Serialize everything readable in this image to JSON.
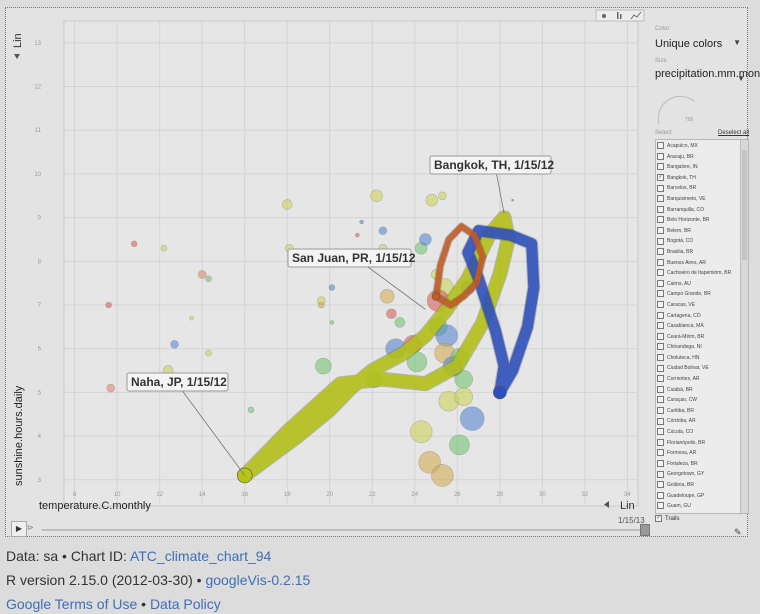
{
  "chart_data": {
    "type": "scatter",
    "title": "",
    "xlabel": "temperature.C.monthly",
    "ylabel": "sunshine.hours.daily",
    "x_ticks": [
      "8",
      "10",
      "12",
      "14",
      "16",
      "18",
      "20",
      "22",
      "24",
      "26",
      "28",
      "30",
      "32",
      "34"
    ],
    "y_ticks": [
      "3",
      "4",
      "5",
      "6",
      "7",
      "8",
      "9",
      "10",
      "11",
      "12",
      "13"
    ],
    "xlim": [
      7.5,
      34.5
    ],
    "ylim": [
      2.4,
      13.5
    ],
    "x_scale_label": "Lin",
    "y_scale_label": "Lin",
    "time_label": "1/15/13",
    "labels": [
      {
        "text": "Bangkok, TH, 1/15/12",
        "x": 28.2,
        "y": 9.1
      },
      {
        "text": "San Juan, PR, 1/15/12",
        "x": 24.5,
        "y": 6.9
      },
      {
        "text": "Naha, JP, 1/15/12",
        "x": 16.0,
        "y": 3.1
      }
    ],
    "trails": [
      {
        "name": "Bangkok, TH",
        "color": "#2c4fc0",
        "width": 11,
        "points": [
          [
            28.0,
            5.0
          ],
          [
            28.2,
            5.6
          ],
          [
            27.8,
            6.4
          ],
          [
            27.0,
            7.6
          ],
          [
            26.5,
            8.2
          ],
          [
            27.0,
            8.7
          ],
          [
            28.5,
            8.6
          ],
          [
            29.5,
            8.4
          ],
          [
            29.6,
            7.4
          ],
          [
            29.3,
            6.5
          ],
          [
            28.6,
            5.5
          ],
          [
            28.0,
            5.0
          ]
        ]
      },
      {
        "name": "Naha, JP",
        "color": "#b7c414",
        "width": 13,
        "points": [
          [
            16.0,
            3.1
          ],
          [
            18.0,
            4.1
          ],
          [
            20.5,
            5.2
          ],
          [
            22.5,
            5.3
          ],
          [
            24.5,
            5.2
          ],
          [
            26.0,
            5.6
          ],
          [
            27.2,
            6.6
          ],
          [
            28.0,
            7.7
          ],
          [
            28.4,
            8.5
          ],
          [
            28.2,
            9.0
          ],
          [
            27.5,
            8.6
          ],
          [
            26.5,
            7.6
          ],
          [
            25.5,
            6.9
          ],
          [
            24.5,
            6.3
          ],
          [
            23.5,
            5.9
          ],
          [
            22.0,
            5.5
          ],
          [
            21.0,
            5.1
          ],
          [
            20.0,
            4.6
          ],
          [
            18.5,
            4.0
          ],
          [
            16.0,
            3.1
          ]
        ]
      },
      {
        "name": "San Juan, PR",
        "color": "#c55a22",
        "width": 6,
        "points": [
          [
            25.0,
            7.2
          ],
          [
            25.2,
            7.9
          ],
          [
            25.6,
            8.5
          ],
          [
            26.2,
            8.8
          ],
          [
            26.8,
            8.6
          ],
          [
            27.2,
            8.1
          ],
          [
            26.9,
            7.5
          ],
          [
            26.3,
            7.2
          ],
          [
            25.7,
            7.0
          ],
          [
            25.0,
            7.2
          ]
        ]
      }
    ],
    "points": [
      {
        "x": 10.8,
        "y": 8.4,
        "r": 3,
        "color": "#d9534f"
      },
      {
        "x": 12.2,
        "y": 8.3,
        "r": 3,
        "color": "#c8d24a"
      },
      {
        "x": 9.6,
        "y": 7.0,
        "r": 3,
        "color": "#d9534f"
      },
      {
        "x": 9.7,
        "y": 5.1,
        "r": 4,
        "color": "#e08060"
      },
      {
        "x": 12.7,
        "y": 6.1,
        "r": 4,
        "color": "#4a7fd0"
      },
      {
        "x": 12.4,
        "y": 5.5,
        "r": 5,
        "color": "#c8d24a"
      },
      {
        "x": 13.5,
        "y": 6.7,
        "r": 2,
        "color": "#c8d24a"
      },
      {
        "x": 14.0,
        "y": 7.7,
        "r": 4,
        "color": "#e08060"
      },
      {
        "x": 14.3,
        "y": 7.6,
        "r": 3,
        "color": "#6abf69"
      },
      {
        "x": 14.3,
        "y": 5.9,
        "r": 3,
        "color": "#c8d24a"
      },
      {
        "x": 16.3,
        "y": 4.6,
        "r": 3,
        "color": "#6abf69"
      },
      {
        "x": 18.0,
        "y": 9.3,
        "r": 5,
        "color": "#c8d24a"
      },
      {
        "x": 18.1,
        "y": 8.3,
        "r": 4,
        "color": "#c8d24a"
      },
      {
        "x": 19.6,
        "y": 7.1,
        "r": 4,
        "color": "#c8d24a"
      },
      {
        "x": 19.6,
        "y": 7.0,
        "r": 3,
        "color": "#d4a84a"
      },
      {
        "x": 20.1,
        "y": 7.4,
        "r": 3,
        "color": "#4a7fd0"
      },
      {
        "x": 20.1,
        "y": 6.6,
        "r": 2,
        "color": "#6abf69"
      },
      {
        "x": 19.7,
        "y": 5.6,
        "r": 8,
        "color": "#6abf69"
      },
      {
        "x": 21.1,
        "y": 8.2,
        "r": 4,
        "color": "#6abf69"
      },
      {
        "x": 21.3,
        "y": 8.6,
        "r": 2,
        "color": "#d9534f"
      },
      {
        "x": 21.5,
        "y": 8.9,
        "r": 2,
        "color": "#4a7fd0"
      },
      {
        "x": 22.2,
        "y": 9.5,
        "r": 6,
        "color": "#c8d24a"
      },
      {
        "x": 22.5,
        "y": 8.7,
        "r": 4,
        "color": "#4a7fd0"
      },
      {
        "x": 22.5,
        "y": 8.3,
        "r": 4,
        "color": "#c8d24a"
      },
      {
        "x": 22.7,
        "y": 7.2,
        "r": 7,
        "color": "#d4a84a"
      },
      {
        "x": 22.9,
        "y": 6.8,
        "r": 5,
        "color": "#d9534f"
      },
      {
        "x": 22.1,
        "y": 5.3,
        "r": 8,
        "color": "#6abf69"
      },
      {
        "x": 23.3,
        "y": 6.6,
        "r": 5,
        "color": "#6abf69"
      },
      {
        "x": 23.1,
        "y": 6.0,
        "r": 10,
        "color": "#4a7fd0"
      },
      {
        "x": 23.9,
        "y": 6.1,
        "r": 9,
        "color": "#d9534f"
      },
      {
        "x": 24.1,
        "y": 5.7,
        "r": 10,
        "color": "#6abf69"
      },
      {
        "x": 24.3,
        "y": 8.3,
        "r": 6,
        "color": "#6abf69"
      },
      {
        "x": 24.5,
        "y": 8.5,
        "r": 6,
        "color": "#4a7fd0"
      },
      {
        "x": 24.8,
        "y": 9.4,
        "r": 6,
        "color": "#c8d24a"
      },
      {
        "x": 25.3,
        "y": 9.5,
        "r": 4,
        "color": "#c8d24a"
      },
      {
        "x": 25.0,
        "y": 7.7,
        "r": 5,
        "color": "#c8d24a"
      },
      {
        "x": 25.4,
        "y": 7.4,
        "r": 9,
        "color": "#c8d24a"
      },
      {
        "x": 25.1,
        "y": 7.1,
        "r": 11,
        "color": "#d9534f"
      },
      {
        "x": 25.1,
        "y": 6.5,
        "r": 9,
        "color": "#6abf69"
      },
      {
        "x": 25.5,
        "y": 6.3,
        "r": 11,
        "color": "#4a7fd0"
      },
      {
        "x": 25.4,
        "y": 5.9,
        "r": 10,
        "color": "#d4a84a"
      },
      {
        "x": 25.8,
        "y": 5.6,
        "r": 10,
        "color": "#4a7fd0"
      },
      {
        "x": 26.1,
        "y": 5.8,
        "r": 9,
        "color": "#6abf69"
      },
      {
        "x": 26.3,
        "y": 5.3,
        "r": 9,
        "color": "#6abf69"
      },
      {
        "x": 25.6,
        "y": 4.8,
        "r": 10,
        "color": "#c8d24a"
      },
      {
        "x": 26.3,
        "y": 4.9,
        "r": 9,
        "color": "#c8d24a"
      },
      {
        "x": 26.7,
        "y": 4.4,
        "r": 12,
        "color": "#4a7fd0"
      },
      {
        "x": 24.3,
        "y": 4.1,
        "r": 11,
        "color": "#c8d24a"
      },
      {
        "x": 26.1,
        "y": 3.8,
        "r": 10,
        "color": "#6abf69"
      },
      {
        "x": 24.7,
        "y": 3.4,
        "r": 11,
        "color": "#d4a84a"
      },
      {
        "x": 25.3,
        "y": 3.1,
        "r": 11,
        "color": "#d4a84a"
      },
      {
        "x": 26.5,
        "y": 7.4,
        "r": 7,
        "color": "#4a7fd0"
      },
      {
        "x": 28.6,
        "y": 9.4,
        "r": 1,
        "color": "#2c4fc0"
      }
    ]
  },
  "sidebar": {
    "color_label": "Color",
    "color_value": "Unique colors",
    "size_label": "Size",
    "size_value": "precipitation.mm.monthly",
    "size_max": "700",
    "select_label": "Select",
    "deselect_all": "Deselect all",
    "trails_label": "Trails",
    "items": [
      {
        "label": "Acapulco, MX",
        "checked": false
      },
      {
        "label": "Aracaju, BR",
        "checked": false
      },
      {
        "label": "Bangalore, IN",
        "checked": false
      },
      {
        "label": "Bangkok, TH",
        "checked": true
      },
      {
        "label": "Barcelos, BR",
        "checked": false
      },
      {
        "label": "Barquisimeto, VE",
        "checked": false
      },
      {
        "label": "Barranquilla, CO",
        "checked": false
      },
      {
        "label": "Belo Horizonte, BR",
        "checked": false
      },
      {
        "label": "Belem, BR",
        "checked": false
      },
      {
        "label": "Bogotá, CO",
        "checked": false
      },
      {
        "label": "Brasilia, BR",
        "checked": false
      },
      {
        "label": "Buenos Aires, AR",
        "checked": false
      },
      {
        "label": "Cachoeiro de Itapemirim, BR",
        "checked": false
      },
      {
        "label": "Cairns, AU",
        "checked": false
      },
      {
        "label": "Campo Grande, BR",
        "checked": false
      },
      {
        "label": "Caracas, VE",
        "checked": false
      },
      {
        "label": "Cartagena, CO",
        "checked": false
      },
      {
        "label": "Casablanca, MA",
        "checked": false
      },
      {
        "label": "Ceará-Mirim, BR",
        "checked": false
      },
      {
        "label": "Chinandega, NI",
        "checked": false
      },
      {
        "label": "Choluteca, HN",
        "checked": false
      },
      {
        "label": "Ciudad Bolivar, VE",
        "checked": false
      },
      {
        "label": "Corrientes, AR",
        "checked": false
      },
      {
        "label": "Cuiabá, BR",
        "checked": false
      },
      {
        "label": "Curaçao, CW",
        "checked": false
      },
      {
        "label": "Curitiba, BR",
        "checked": false
      },
      {
        "label": "Córdoba, AR",
        "checked": false
      },
      {
        "label": "Cúcuta, CO",
        "checked": false
      },
      {
        "label": "Florianópolis, BR",
        "checked": false
      },
      {
        "label": "Formosa, AR",
        "checked": false
      },
      {
        "label": "Fortaleza, BR",
        "checked": false
      },
      {
        "label": "Georgetown, GY",
        "checked": false
      },
      {
        "label": "Goiânia, BR",
        "checked": false
      },
      {
        "label": "Guadeloupe, GP",
        "checked": false
      },
      {
        "label": "Guam, GU",
        "checked": false
      }
    ]
  },
  "footer": {
    "data_prefix": "Data: sa • Chart ID: ",
    "chart_id": "ATC_climate_chart_94",
    "r_version_prefix": "R version 2.15.0 (2012-03-30) • ",
    "googlevis": "googleVis-0.2.15",
    "terms": "Google Terms of Use",
    "sep": " • ",
    "policy": "Data Policy"
  },
  "icons": {
    "play": "play-icon",
    "settings": "wrench-icon"
  },
  "colors": {
    "background": "#dcdcdc",
    "link": "#3d6fb8",
    "bangkok": "#2c4fc0",
    "naha": "#b7c414",
    "sanjuan": "#c55a22"
  }
}
